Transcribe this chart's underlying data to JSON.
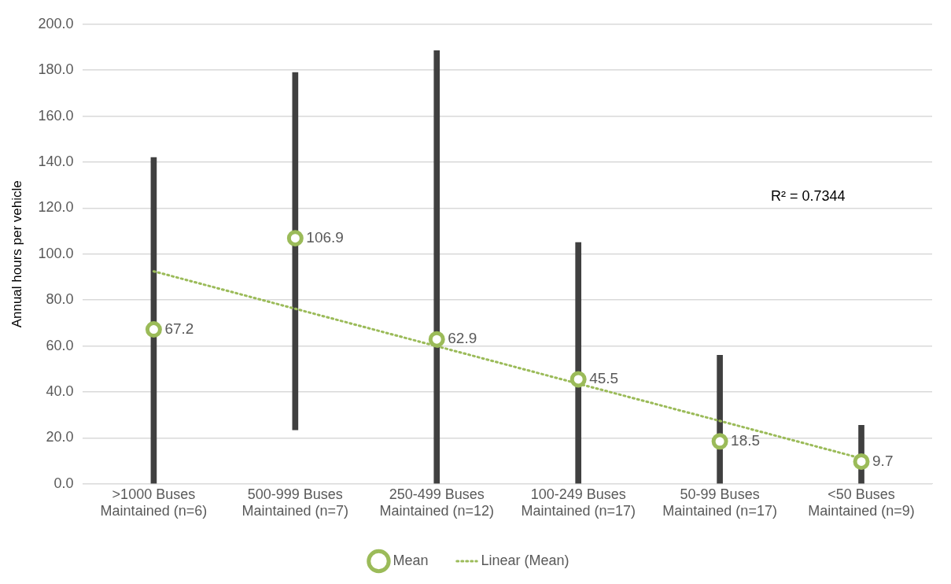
{
  "chart_data": {
    "type": "bar",
    "ylabel": "Annual hours per vehicle",
    "categories": [
      ">1000 Buses\nMaintained (n=6)",
      "500-999 Buses\nMaintained (n=7)",
      "250-499 Buses\nMaintained (n=12)",
      "100-249 Buses\nMaintained (n=17)",
      "50-99 Buses\nMaintained (n=17)",
      "<50 Buses\nMaintained (n=9)"
    ],
    "series": [
      {
        "color": "#404040",
        "base": [
          0,
          23.5,
          0,
          0,
          0,
          0
        ],
        "values": [
          142,
          155.5,
          188.5,
          105,
          56,
          25.5
        ]
      },
      {
        "type": "scatter",
        "name": "Mean",
        "color": "#9bbb59",
        "marker": "circle",
        "values": [
          67.2,
          106.9,
          62.9,
          45.5,
          18.5,
          9.7
        ],
        "value_labels": [
          "67.2",
          "106.9",
          "62.9",
          "45.5",
          "18.5",
          "9.7"
        ]
      },
      {
        "type": "line",
        "name": "Linear (Mean)",
        "color": "#9bbb59",
        "marker": "none",
        "line_style": "dotted",
        "values": [
          92.5,
          76.2,
          59.9,
          43.6,
          27.4,
          11.1
        ]
      }
    ],
    "ylim": [
      0,
      200
    ],
    "yticks": [
      {
        "value": 0,
        "label": "0.0"
      },
      {
        "value": 20,
        "label": "20.0"
      },
      {
        "value": 40,
        "label": "40.0"
      },
      {
        "value": 60,
        "label": "60.0"
      },
      {
        "value": 80,
        "label": "80.0"
      },
      {
        "value": 100,
        "label": "100.0"
      },
      {
        "value": 120,
        "label": "120.0"
      },
      {
        "value": 140,
        "label": "140.0"
      },
      {
        "value": 160,
        "label": "160.0"
      },
      {
        "value": 180,
        "label": "180.0"
      },
      {
        "value": 200,
        "label": "200.0"
      }
    ],
    "grid": "y",
    "legend": "bottom",
    "annotations": [
      "R² = 0.7344"
    ]
  }
}
